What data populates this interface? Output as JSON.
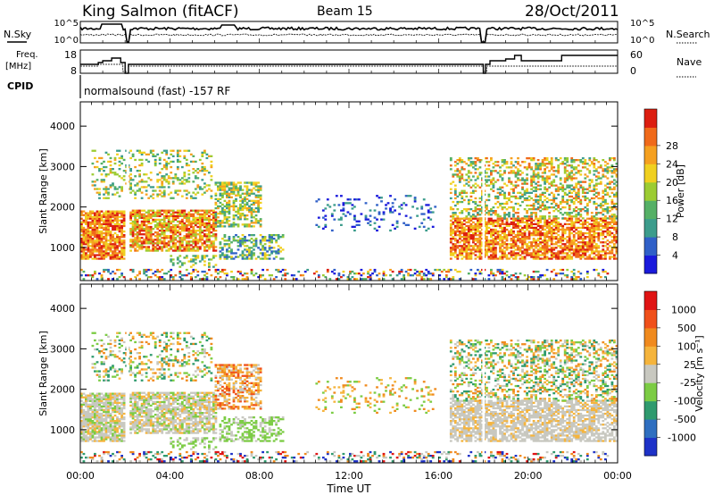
{
  "header": {
    "station": "King Salmon (fitACF)",
    "beam": "Beam 15",
    "date": "28/Oct/2011"
  },
  "labels": {
    "nsky": "N.Sky",
    "nsearch": "N.Search",
    "freq_line1": "Freq.",
    "freq_line2": "[MHz]",
    "nave": "Nave",
    "cpid": "CPID",
    "cpid_value": "normalsound (fast) -157 RF",
    "ylabel": "Slant Range [km]",
    "xlabel": "Time UT",
    "power_label": "Power [dB]",
    "velocity_label": "Velocity [m s⁻¹]"
  },
  "noise_axis": {
    "left_ticks": [
      "10^5",
      "10^0"
    ],
    "right_ticks": [
      "10^5",
      "10^0"
    ]
  },
  "freq_axis": {
    "left_ticks": [
      "18",
      "8"
    ],
    "right_ticks": [
      "60",
      "0"
    ]
  },
  "chart_data": [
    {
      "type": "heatmap",
      "title": "Power",
      "xlabel": "Time UT",
      "ylabel": "Slant Range [km]",
      "xlim": [
        0,
        24
      ],
      "x_ticks": [
        "00:00",
        "04:00",
        "08:00",
        "12:00",
        "16:00",
        "20:00",
        "00:00"
      ],
      "ylim": [
        180,
        4600
      ],
      "y_ticks": [
        1000,
        2000,
        3000,
        4000
      ],
      "colorbar": {
        "label": "Power [dB]",
        "ticks": [
          4,
          8,
          12,
          16,
          20,
          24,
          28
        ],
        "colors": [
          "#1a1adc",
          "#3060c8",
          "#3c9c8c",
          "#55b066",
          "#9ccc33",
          "#f0d020",
          "#f5a020",
          "#f06a1a",
          "#dc1e10"
        ]
      }
    },
    {
      "type": "heatmap",
      "title": "Velocity",
      "xlabel": "Time UT",
      "ylabel": "Slant Range [km]",
      "xlim": [
        0,
        24
      ],
      "x_ticks": [
        "00:00",
        "04:00",
        "08:00",
        "12:00",
        "16:00",
        "20:00",
        "00:00"
      ],
      "ylim": [
        180,
        4600
      ],
      "y_ticks": [
        1000,
        2000,
        3000,
        4000
      ],
      "colorbar": {
        "label": "Velocity [m s⁻¹]",
        "ticks": [
          "1000",
          "500",
          "100",
          "25",
          "-25",
          "-100",
          "-500",
          "-1000"
        ],
        "colors": [
          "#1e32c8",
          "#2f6fc0",
          "#2f9a6e",
          "#7ccc44",
          "#c8c8c0",
          "#f5b43c",
          "#f08a1e",
          "#f0501a",
          "#e01414"
        ]
      }
    }
  ]
}
